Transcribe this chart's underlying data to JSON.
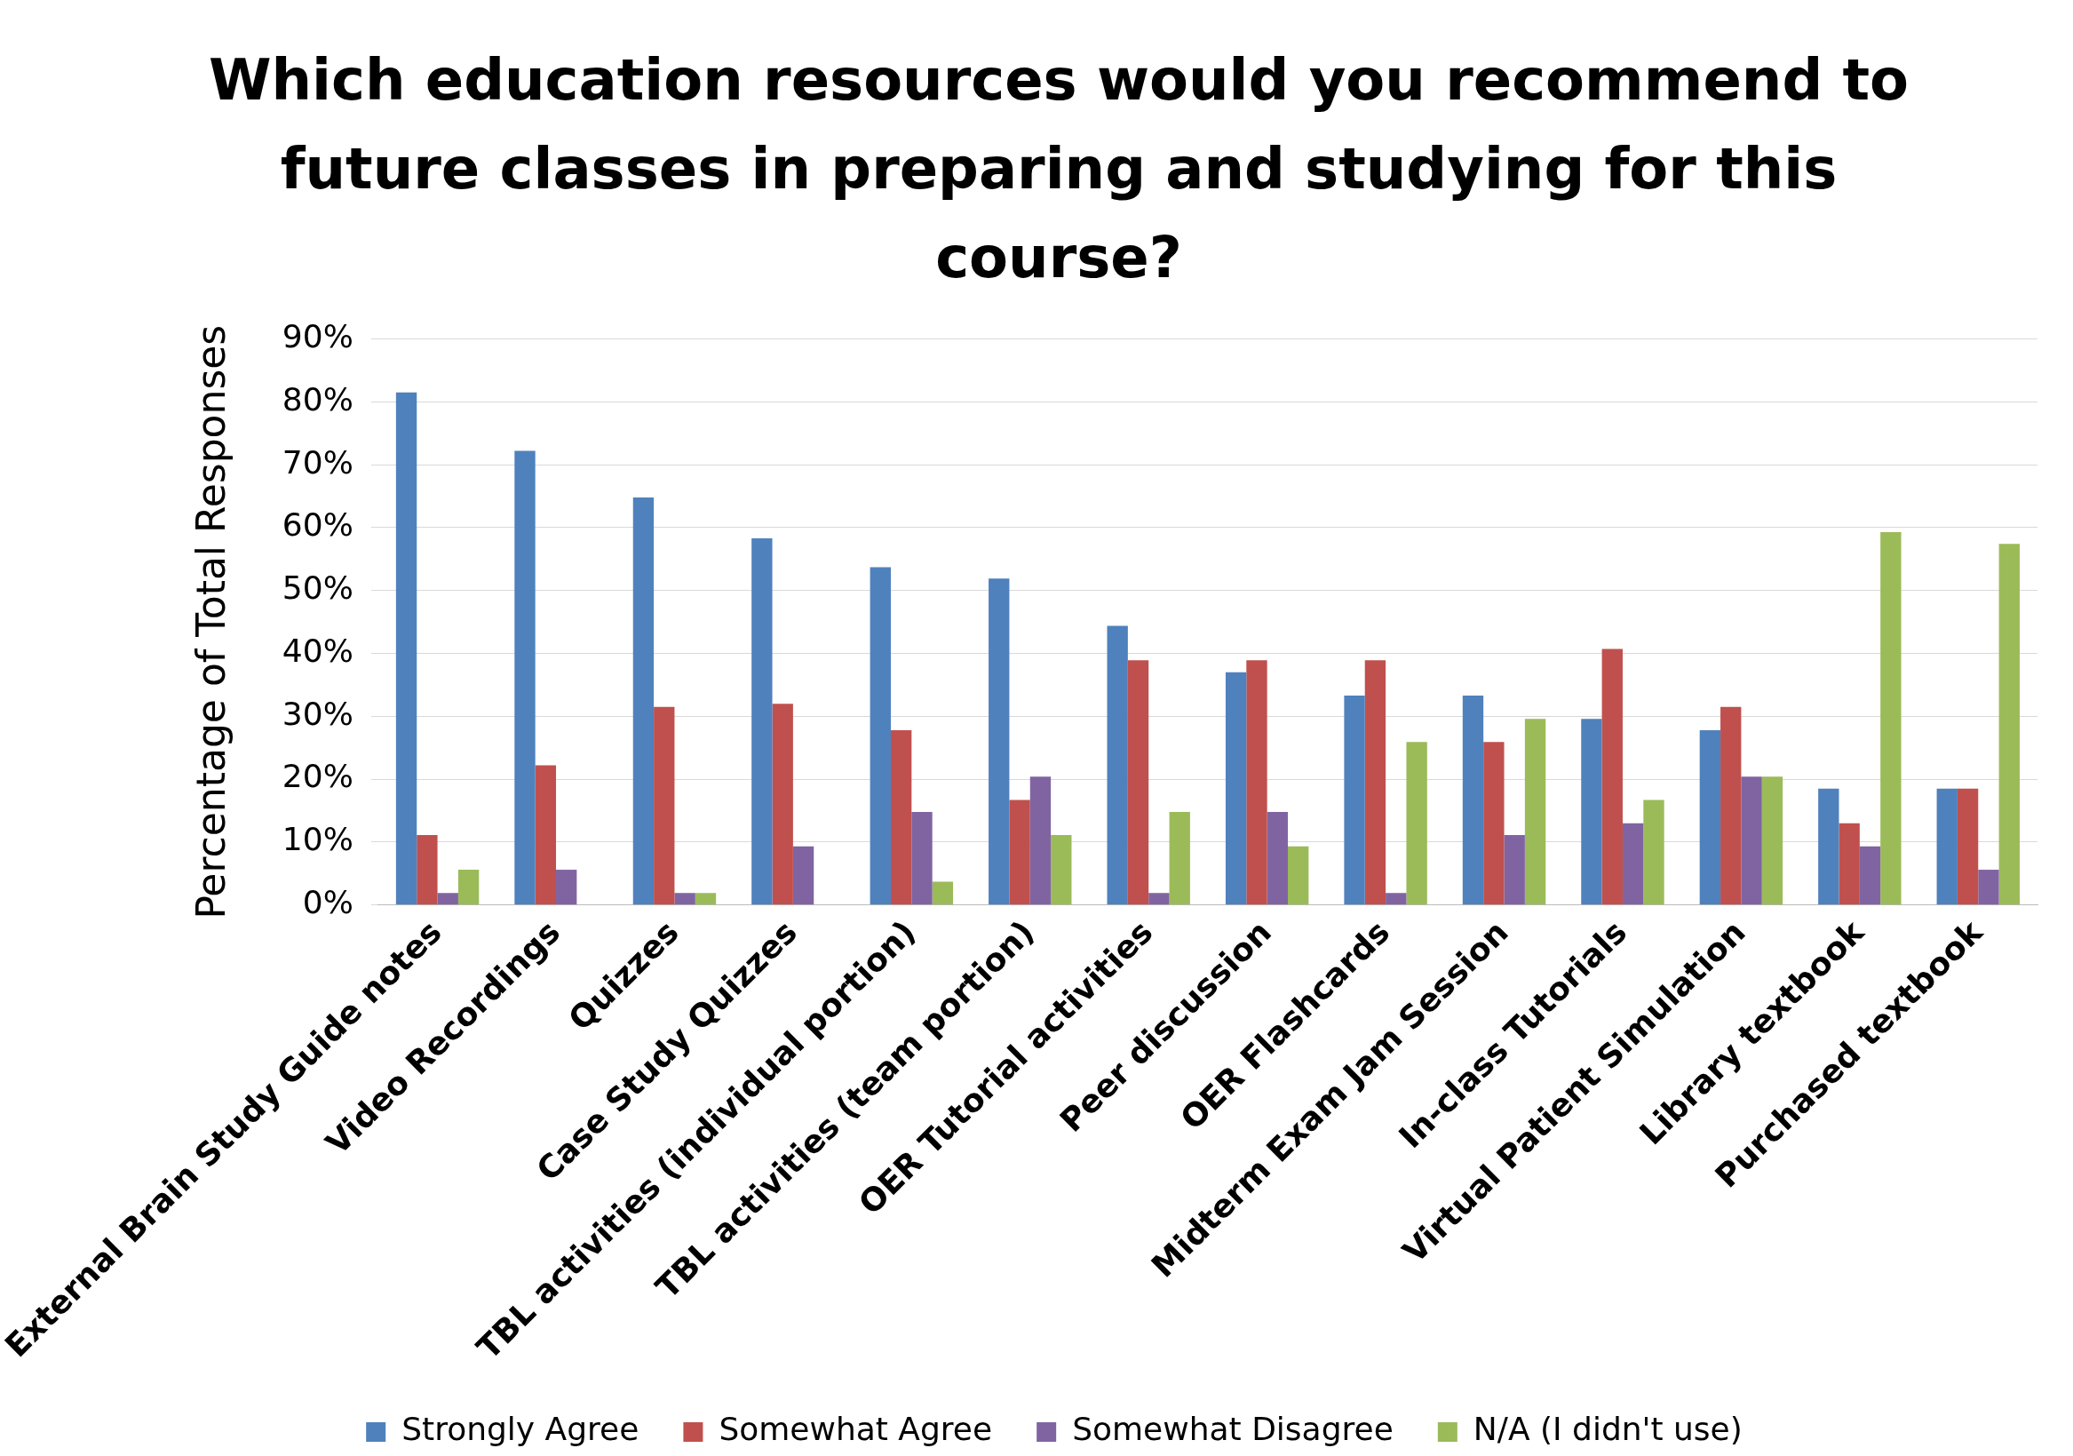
{
  "chart_data": {
    "type": "bar",
    "title": "Which education resources would you recommend to future classes in preparing and studying for this course?",
    "ylabel": "Percentage of Total Responses",
    "categories": [
      "External Brain Study Guide notes",
      "Video Recordings",
      "Quizzes",
      "Case Study Quizzes",
      "TBL activities (individual portion)",
      "TBL activities (team portion)",
      "OER Tutorial activities",
      "Peer discussion",
      "OER Flashcards",
      "Midterm Exam Jam Session",
      "In-class Tutorials",
      "Virtual Patient Simulation",
      "Library textbook",
      "Purchased textbook"
    ],
    "series": [
      {
        "name": "Strongly Agree",
        "color": "#4f81bd",
        "values": [
          81.5,
          72.2,
          64.8,
          58.3,
          53.7,
          51.9,
          44.4,
          37,
          33.3,
          33.3,
          29.6,
          27.8,
          18.5,
          18.5
        ]
      },
      {
        "name": "Somewhat Agree",
        "color": "#c0504d",
        "values": [
          11.1,
          22.2,
          31.5,
          32,
          27.8,
          16.7,
          38.9,
          38.9,
          38.9,
          25.9,
          40.7,
          31.5,
          13,
          18.5
        ]
      },
      {
        "name": "Somewhat Disagree",
        "color": "#8064a2",
        "values": [
          1.9,
          5.6,
          1.9,
          9.3,
          14.8,
          20.4,
          1.9,
          14.8,
          1.9,
          11.1,
          13,
          20.4,
          9.3,
          5.6
        ]
      },
      {
        "name": "N/A (I didn't use)",
        "color": "#9bbb59",
        "values": [
          5.6,
          0,
          1.9,
          0,
          3.7,
          11.1,
          14.8,
          9.3,
          25.9,
          29.6,
          16.7,
          20.4,
          59.3,
          57.4
        ]
      }
    ],
    "ylim": [
      0,
      90
    ],
    "yticks": [
      {
        "value": 0,
        "label": "0%"
      },
      {
        "value": 10,
        "label": "10%"
      },
      {
        "value": 20,
        "label": "20%"
      },
      {
        "value": 30,
        "label": "30%"
      },
      {
        "value": 40,
        "label": "40%"
      },
      {
        "value": 50,
        "label": "50%"
      },
      {
        "value": 60,
        "label": "60%"
      },
      {
        "value": 70,
        "label": "70%"
      },
      {
        "value": 80,
        "label": "80%"
      },
      {
        "value": 90,
        "label": "90%"
      }
    ],
    "grid": "y",
    "legend": "bottom"
  }
}
